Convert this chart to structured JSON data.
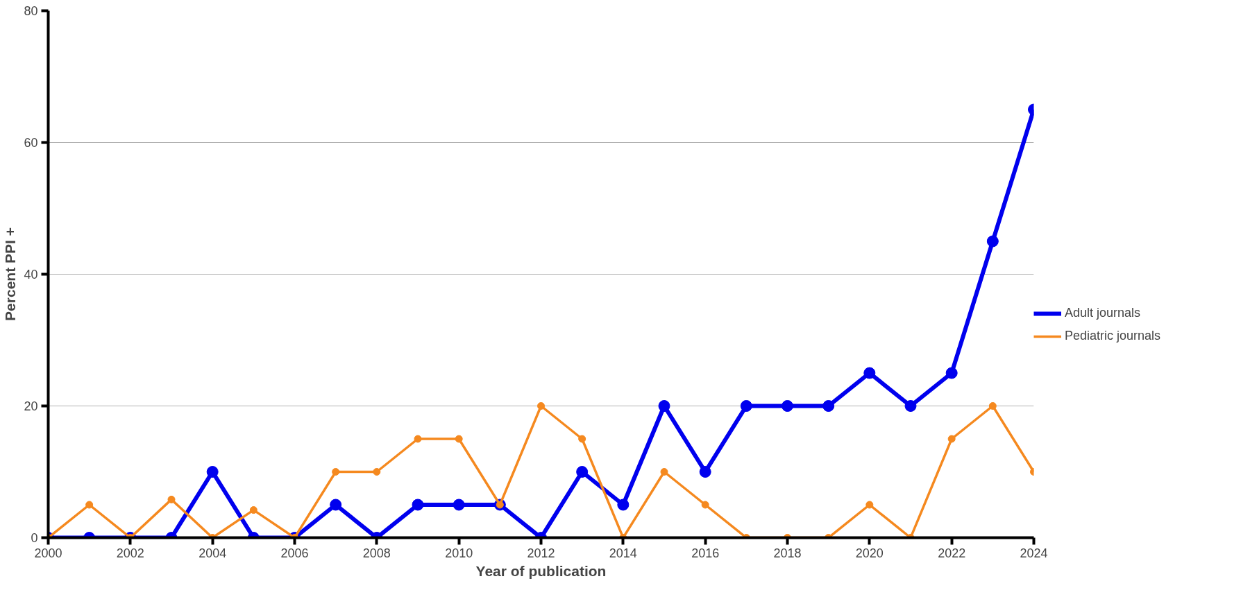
{
  "chart_data": {
    "type": "line",
    "xlabel": "Year of publication",
    "ylabel": "Percent PPI +",
    "x": [
      2000,
      2001,
      2002,
      2003,
      2004,
      2005,
      2006,
      2007,
      2008,
      2009,
      2010,
      2011,
      2012,
      2013,
      2014,
      2015,
      2016,
      2017,
      2018,
      2019,
      2020,
      2021,
      2022,
      2023,
      2024
    ],
    "series": [
      {
        "name": "Adult journals",
        "color": "#0000ee",
        "values": [
          0,
          0,
          0,
          0,
          10,
          0,
          0,
          5,
          0,
          5,
          5,
          5,
          0,
          10,
          5,
          20,
          10,
          20,
          20,
          20,
          25,
          20,
          25,
          45,
          65
        ]
      },
      {
        "name": "Pediatric journals",
        "color": "#f5891f",
        "values": [
          0,
          5,
          0,
          5.8,
          0,
          4.2,
          0,
          10,
          10,
          15,
          15,
          5,
          20,
          15,
          0,
          10,
          5,
          0,
          0,
          0,
          5,
          0,
          15,
          20,
          10
        ]
      }
    ],
    "xlim": [
      2000,
      2024
    ],
    "xticks": [
      2000,
      2002,
      2004,
      2006,
      2008,
      2010,
      2012,
      2014,
      2016,
      2018,
      2020,
      2022,
      2024
    ],
    "ylim": [
      0,
      80
    ],
    "yticks": [
      0,
      20,
      40,
      60,
      80
    ],
    "grid": "y",
    "legend": "right",
    "marker": "circle",
    "line_style": "solid"
  }
}
